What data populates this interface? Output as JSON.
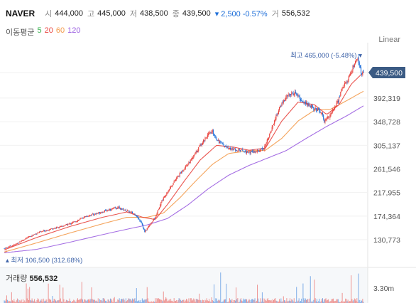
{
  "header": {
    "name": "NAVER",
    "open_label": "시",
    "open": "444,000",
    "high_label": "고",
    "high": "445,000",
    "low_label": "저",
    "low": "438,500",
    "close_label": "종",
    "close": "439,500",
    "change": "▾ 2,500 -0.57%",
    "volume_label": "거",
    "volume": "556,532"
  },
  "ma": {
    "label": "이동평균",
    "items": [
      {
        "label": "5",
        "color": "#32b04a"
      },
      {
        "label": "20",
        "color": "#e8413c"
      },
      {
        "label": "60",
        "color": "#f39a4a"
      },
      {
        "label": "120",
        "color": "#9a5de0"
      }
    ]
  },
  "scale_mode": "Linear",
  "annotations": {
    "max_label": "최고 465,000 (-5.48%) ▾",
    "min_label": "▴ 최저 106,500 (312.68%)",
    "current_price": "439,500"
  },
  "volume_panel": {
    "label": "거래량",
    "value": "556,532",
    "axis_tick": "3.30m"
  },
  "colors": {
    "up": "#e8413c",
    "down": "#1e6fd9",
    "price_tag": "#3b5b84"
  },
  "chart_data": {
    "type": "candlestick",
    "y_ticks": [
      "439,500",
      "392,319",
      "348,728",
      "305,137",
      "261,546",
      "217,955",
      "174,364",
      "130,773"
    ],
    "y_tick_values": [
      439500,
      392319,
      348728,
      305137,
      261546,
      217955,
      174364,
      130773
    ],
    "ylim": [
      106500,
      465000
    ],
    "close_trend": [
      [
        0,
        115000
      ],
      [
        12,
        121000
      ],
      [
        25,
        132000
      ],
      [
        40,
        143000
      ],
      [
        55,
        150000
      ],
      [
        70,
        155000
      ],
      [
        85,
        163000
      ],
      [
        100,
        174000
      ],
      [
        115,
        180000
      ],
      [
        130,
        187000
      ],
      [
        140,
        190000
      ],
      [
        150,
        184000
      ],
      [
        160,
        178000
      ],
      [
        168,
        163000
      ],
      [
        172,
        145000
      ],
      [
        178,
        158000
      ],
      [
        185,
        172000
      ],
      [
        192,
        200000
      ],
      [
        200,
        220000
      ],
      [
        210,
        242000
      ],
      [
        220,
        262000
      ],
      [
        230,
        280000
      ],
      [
        240,
        305000
      ],
      [
        248,
        322000
      ],
      [
        255,
        330000
      ],
      [
        260,
        317000
      ],
      [
        268,
        305000
      ],
      [
        278,
        298000
      ],
      [
        290,
        296000
      ],
      [
        300,
        292000
      ],
      [
        310,
        293000
      ],
      [
        318,
        300000
      ],
      [
        325,
        325000
      ],
      [
        332,
        355000
      ],
      [
        340,
        383000
      ],
      [
        348,
        398000
      ],
      [
        356,
        402000
      ],
      [
        364,
        388000
      ],
      [
        372,
        380000
      ],
      [
        380,
        372000
      ],
      [
        388,
        368000
      ],
      [
        392,
        350000
      ],
      [
        397,
        358000
      ],
      [
        403,
        370000
      ],
      [
        409,
        388000
      ],
      [
        414,
        412000
      ],
      [
        420,
        423000
      ],
      [
        425,
        442000
      ],
      [
        429,
        455000
      ],
      [
        433,
        465000
      ],
      [
        437,
        441000
      ],
      [
        440,
        439500
      ]
    ],
    "ma20_trend": [
      [
        0,
        112000
      ],
      [
        40,
        135000
      ],
      [
        80,
        155000
      ],
      [
        120,
        172000
      ],
      [
        150,
        182000
      ],
      [
        170,
        172000
      ],
      [
        185,
        168000
      ],
      [
        200,
        196000
      ],
      [
        220,
        238000
      ],
      [
        240,
        278000
      ],
      [
        260,
        305000
      ],
      [
        280,
        302000
      ],
      [
        300,
        296000
      ],
      [
        320,
        300000
      ],
      [
        340,
        350000
      ],
      [
        360,
        385000
      ],
      [
        380,
        380000
      ],
      [
        395,
        362000
      ],
      [
        410,
        380000
      ],
      [
        425,
        418000
      ],
      [
        440,
        440000
      ]
    ],
    "ma60_trend": [
      [
        0,
        108000
      ],
      [
        40,
        125000
      ],
      [
        80,
        143000
      ],
      [
        120,
        160000
      ],
      [
        150,
        172000
      ],
      [
        175,
        172000
      ],
      [
        195,
        180000
      ],
      [
        215,
        208000
      ],
      [
        235,
        240000
      ],
      [
        255,
        270000
      ],
      [
        275,
        290000
      ],
      [
        300,
        295000
      ],
      [
        320,
        296000
      ],
      [
        340,
        318000
      ],
      [
        360,
        350000
      ],
      [
        380,
        370000
      ],
      [
        400,
        372000
      ],
      [
        420,
        388000
      ],
      [
        440,
        405000
      ]
    ],
    "ma120_trend": [
      [
        0,
        106500
      ],
      [
        40,
        113000
      ],
      [
        80,
        126000
      ],
      [
        120,
        140000
      ],
      [
        150,
        150000
      ],
      [
        175,
        158000
      ],
      [
        200,
        170000
      ],
      [
        225,
        195000
      ],
      [
        250,
        225000
      ],
      [
        275,
        250000
      ],
      [
        300,
        268000
      ],
      [
        320,
        280000
      ],
      [
        345,
        295000
      ],
      [
        370,
        318000
      ],
      [
        395,
        340000
      ],
      [
        420,
        360000
      ],
      [
        440,
        378000
      ]
    ]
  }
}
